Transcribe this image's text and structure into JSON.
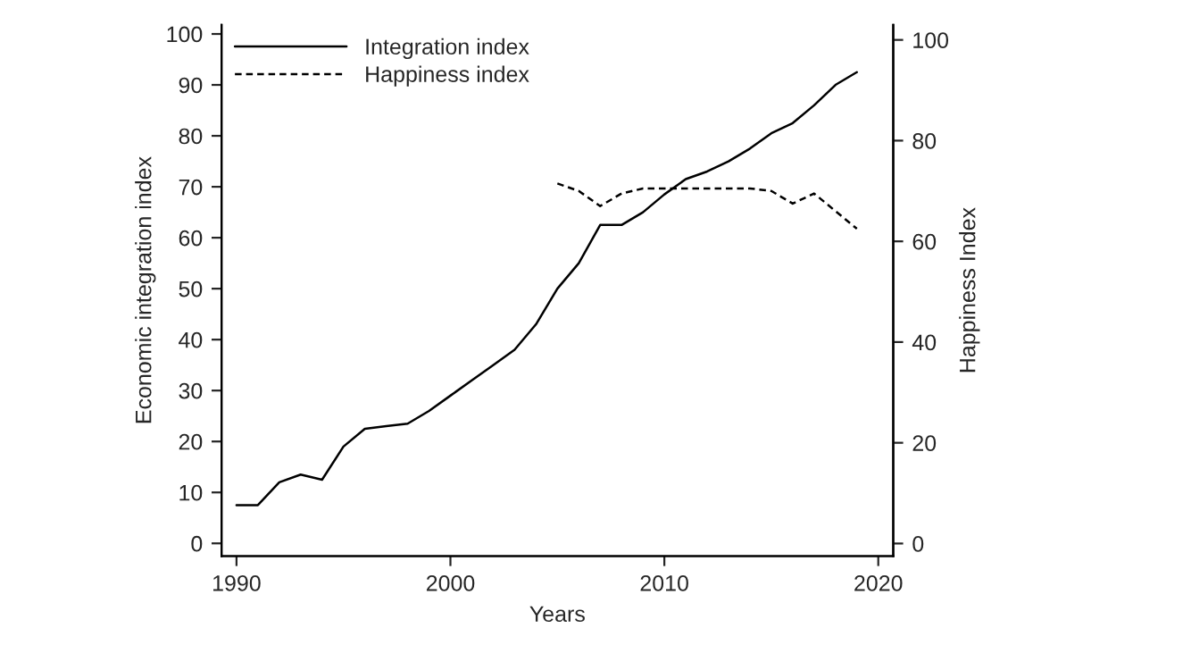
{
  "chart_data": {
    "type": "line",
    "xlabel": "Years",
    "ylabel": "Economic integration index",
    "y2label": "Happiness Index",
    "xlim": [
      1989.3,
      2020.7
    ],
    "xticks": [
      1990,
      2000,
      2010,
      2020
    ],
    "ylim": [
      -2.5,
      101.8
    ],
    "yticks": [
      0,
      10,
      20,
      30,
      40,
      50,
      60,
      70,
      80,
      90,
      100
    ],
    "y2lim": [
      -2.5,
      103
    ],
    "y2ticks": [
      0,
      20,
      40,
      60,
      80,
      100
    ],
    "legend": "top left",
    "grid": false,
    "series": [
      {
        "name": "Integration index",
        "color": "#000000",
        "line_style": "solid",
        "x": [
          1990,
          1991,
          1992,
          1993,
          1994,
          1995,
          1996,
          1997,
          1998,
          1999,
          2000,
          2001,
          2002,
          2003,
          2004,
          2005,
          2006,
          2007,
          2008,
          2009,
          2010,
          2011,
          2012,
          2013,
          2014,
          2015,
          2016,
          2017,
          2018,
          2019
        ],
        "values": [
          7.5,
          7.5,
          12,
          13.5,
          12.5,
          19,
          22.5,
          23,
          23.5,
          26,
          29,
          32,
          35,
          38,
          43,
          50,
          55,
          62.5,
          62.5,
          65,
          68.5,
          71.5,
          73,
          75,
          77.5,
          80.5,
          82.5,
          86,
          90,
          92.5
        ]
      },
      {
        "name": "Happiness index",
        "color": "#000000",
        "line_style": "dashed",
        "axis": "y2",
        "x": [
          2005,
          2006,
          2007,
          2008,
          2009,
          2010,
          2011,
          2012,
          2013,
          2014,
          2015,
          2016,
          2017,
          2018,
          2019
        ],
        "values": [
          71.5,
          70,
          67,
          69.5,
          70.5,
          70.5,
          70.5,
          70.5,
          70.5,
          70.5,
          70,
          67.5,
          69.5,
          66,
          62.5
        ]
      }
    ]
  }
}
